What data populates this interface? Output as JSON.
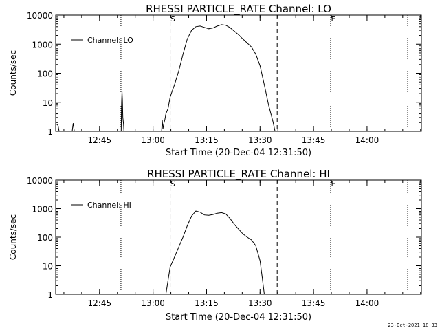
{
  "chart_data": [
    {
      "type": "line",
      "title": "RHESSI PARTICLE_RATE Channel: LO",
      "xlabel": "Start Time (20-Dec-04 12:31:50)",
      "ylabel": "Counts/sec",
      "yscale": "log",
      "ylim": [
        1,
        10000
      ],
      "xlim": [
        12.545,
        14.254
      ],
      "x_unit": "hour of day (UT)",
      "x_ticks": [
        12.75,
        13.0,
        13.25,
        13.5,
        13.75,
        14.0
      ],
      "x_tick_labels": [
        "12:45",
        "13:00",
        "13:15",
        "13:30",
        "13:45",
        "14:00"
      ],
      "y_ticks": [
        1,
        10,
        100,
        1000,
        10000
      ],
      "y_tick_labels": [
        "1",
        "10",
        "100",
        "1000",
        "10000"
      ],
      "legend": {
        "placement": "top-left",
        "entries": [
          "Channel: LO"
        ]
      },
      "grid": false,
      "markers": [
        {
          "x": 12.545,
          "style": "dotted",
          "label": ""
        },
        {
          "x": 12.85,
          "style": "dotted",
          "label": ""
        },
        {
          "x": 13.08,
          "style": "dashed",
          "label": "S"
        },
        {
          "x": 13.58,
          "style": "dashed",
          "label": ""
        },
        {
          "x": 13.83,
          "style": "dotted",
          "label": "E"
        },
        {
          "x": 14.19,
          "style": "dotted",
          "label": ""
        }
      ],
      "series": [
        {
          "name": "Channel: LO",
          "segments": [
            [
              [
                12.548,
                1.8
              ],
              [
                12.556,
                1.6
              ],
              [
                12.561,
                1.0
              ]
            ],
            [
              [
                12.622,
                1.0
              ],
              [
                12.627,
                1.9
              ],
              [
                12.632,
                1.0
              ]
            ],
            [
              [
                12.851,
                1.0
              ],
              [
                12.853,
                10
              ],
              [
                12.855,
                24
              ],
              [
                12.857,
                12
              ],
              [
                12.859,
                3
              ],
              [
                12.862,
                1.8
              ],
              [
                12.864,
                1.0
              ]
            ],
            [
              [
                13.04,
                1.0
              ],
              [
                13.043,
                2.5
              ],
              [
                13.046,
                1.2
              ],
              [
                13.05,
                1.8
              ],
              [
                13.055,
                2.5
              ],
              [
                13.06,
                4
              ],
              [
                13.07,
                6
              ],
              [
                13.08,
                15
              ],
              [
                13.09,
                25
              ],
              [
                13.1,
                40
              ],
              [
                13.12,
                120
              ],
              [
                13.14,
                450
              ],
              [
                13.16,
                1500
              ],
              [
                13.18,
                3000
              ],
              [
                13.2,
                4000
              ],
              [
                13.22,
                4200
              ],
              [
                13.24,
                3800
              ],
              [
                13.26,
                3400
              ],
              [
                13.28,
                3600
              ],
              [
                13.3,
                4200
              ],
              [
                13.32,
                4700
              ],
              [
                13.34,
                4500
              ],
              [
                13.36,
                3700
              ],
              [
                13.38,
                2800
              ],
              [
                13.4,
                2100
              ],
              [
                13.42,
                1500
              ],
              [
                13.44,
                1100
              ],
              [
                13.46,
                800
              ],
              [
                13.48,
                450
              ],
              [
                13.5,
                180
              ],
              [
                13.52,
                40
              ],
              [
                13.54,
                8
              ],
              [
                13.56,
                2.2
              ],
              [
                13.57,
                1.0
              ]
            ]
          ]
        }
      ]
    },
    {
      "type": "line",
      "title": "RHESSI PARTICLE_RATE Channel: HI",
      "xlabel": "Start Time (20-Dec-04 12:31:50)",
      "ylabel": "Counts/sec",
      "yscale": "log",
      "ylim": [
        1,
        10000
      ],
      "xlim": [
        12.545,
        14.254
      ],
      "x_unit": "hour of day (UT)",
      "x_ticks": [
        12.75,
        13.0,
        13.25,
        13.5,
        13.75,
        14.0
      ],
      "x_tick_labels": [
        "12:45",
        "13:00",
        "13:15",
        "13:30",
        "13:45",
        "14:00"
      ],
      "y_ticks": [
        1,
        10,
        100,
        1000,
        10000
      ],
      "y_tick_labels": [
        "1",
        "10",
        "100",
        "1000",
        "10000"
      ],
      "legend": {
        "placement": "top-left",
        "entries": [
          "Channel: HI"
        ]
      },
      "grid": false,
      "markers": [
        {
          "x": 12.545,
          "style": "dotted",
          "label": ""
        },
        {
          "x": 12.85,
          "style": "dotted",
          "label": ""
        },
        {
          "x": 13.08,
          "style": "dashed",
          "label": "S"
        },
        {
          "x": 13.58,
          "style": "dashed",
          "label": ""
        },
        {
          "x": 13.83,
          "style": "dotted",
          "label": "E"
        },
        {
          "x": 14.19,
          "style": "dotted",
          "label": ""
        }
      ],
      "series": [
        {
          "name": "Channel: HI",
          "segments": [
            [
              [
                13.06,
                1.0
              ],
              [
                13.07,
                3
              ],
              [
                13.08,
                9
              ],
              [
                13.1,
                20
              ],
              [
                13.12,
                45
              ],
              [
                13.14,
                100
              ],
              [
                13.16,
                250
              ],
              [
                13.18,
                550
              ],
              [
                13.2,
                820
              ],
              [
                13.22,
                750
              ],
              [
                13.24,
                600
              ],
              [
                13.26,
                580
              ],
              [
                13.28,
                620
              ],
              [
                13.3,
                690
              ],
              [
                13.32,
                720
              ],
              [
                13.34,
                650
              ],
              [
                13.36,
                450
              ],
              [
                13.38,
                280
              ],
              [
                13.4,
                190
              ],
              [
                13.42,
                130
              ],
              [
                13.44,
                100
              ],
              [
                13.46,
                80
              ],
              [
                13.48,
                50
              ],
              [
                13.5,
                15
              ],
              [
                13.51,
                4
              ],
              [
                13.52,
                1.0
              ]
            ]
          ]
        }
      ]
    }
  ],
  "footer": {
    "timestamp": "23-Oct-2021 18:33"
  }
}
